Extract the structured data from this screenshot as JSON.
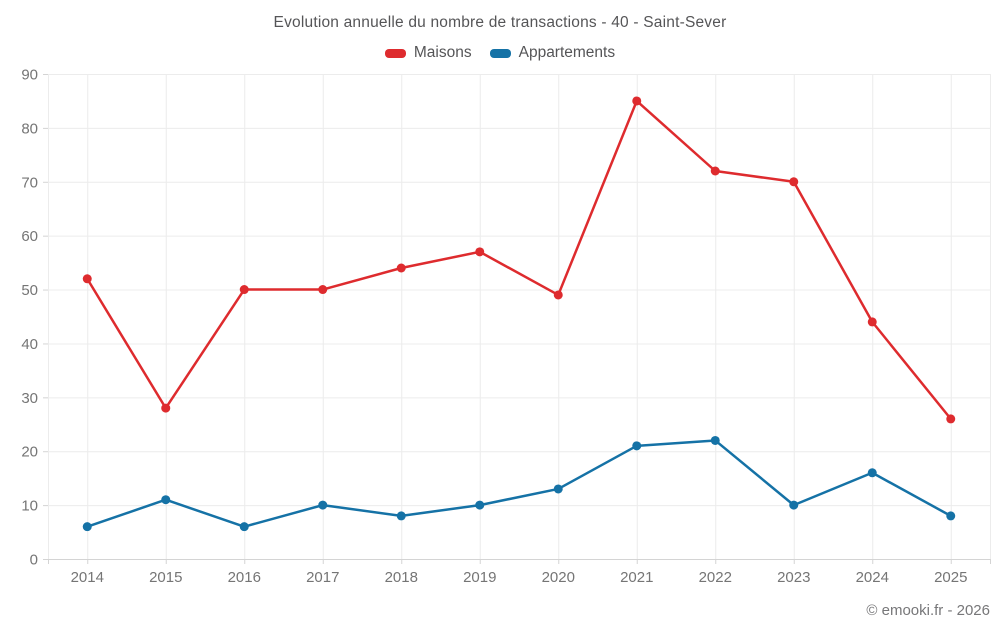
{
  "header": {
    "title": "Evolution annuelle du nombre de transactions - 40 - Saint-Sever"
  },
  "footer": {
    "copyright": "© emooki.fr - 2026"
  },
  "colors": {
    "maisons": "#de2b2e",
    "appartements": "#1572a6",
    "grid": "#ececec",
    "axis_line": "#d4d4d4",
    "tick_label": "#757575",
    "title_text": "#555557"
  },
  "chart_data": {
    "type": "line",
    "title": "Evolution annuelle du nombre de transactions - 40 - Saint-Sever",
    "categories": [
      "2014",
      "2015",
      "2016",
      "2017",
      "2018",
      "2019",
      "2020",
      "2021",
      "2022",
      "2023",
      "2024",
      "2025"
    ],
    "series": [
      {
        "name": "Maisons",
        "color": "#de2b2e",
        "values": [
          52,
          28,
          50,
          50,
          54,
          57,
          49,
          85,
          72,
          70,
          44,
          26
        ]
      },
      {
        "name": "Appartements",
        "color": "#1572a6",
        "values": [
          6,
          11,
          6,
          10,
          8,
          10,
          13,
          21,
          22,
          10,
          16,
          8
        ]
      }
    ],
    "xlabel": "",
    "ylabel": "",
    "ylim": [
      0,
      90
    ],
    "ytick_step": 10,
    "grid": true,
    "legend_position": "top"
  }
}
